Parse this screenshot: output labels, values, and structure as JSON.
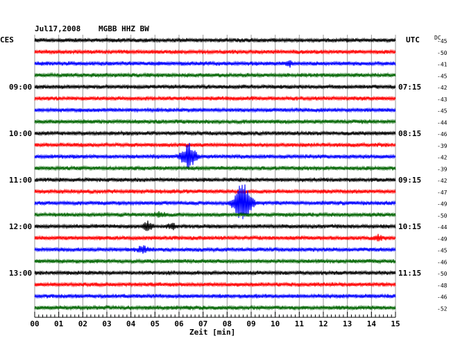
{
  "chart_data": {
    "type": "line",
    "title": "Jul17,2008",
    "station": "MGBB HHZ BW",
    "left_timezone": "CES",
    "right_timezone": "UTC",
    "dc_label": "DC",
    "xlabel": "Zeit [min]",
    "xlim": [
      0,
      15
    ],
    "x_ticks": [
      "00",
      "01",
      "02",
      "03",
      "04",
      "05",
      "06",
      "07",
      "08",
      "09",
      "10",
      "11",
      "12",
      "13",
      "14",
      "15"
    ],
    "grid": true,
    "trace_colors": [
      "#000000",
      "#ff0000",
      "#0000ff",
      "#006400"
    ],
    "traces_per_hour": 4,
    "minutes_per_trace": 15,
    "left_hour_labels": [
      "09:00",
      "10:00",
      "11:00",
      "12:00",
      "13:00"
    ],
    "right_hour_labels": [
      "07:15",
      "08:15",
      "09:15",
      "10:15",
      "11:15"
    ],
    "dc_offsets": [
      -45,
      -50,
      -41,
      -45,
      -42,
      -43,
      -45,
      -44,
      -46,
      -39,
      -42,
      -39,
      -42,
      -47,
      -49,
      -50,
      -44,
      -49,
      -45,
      -46,
      -50,
      -48,
      -46,
      -52
    ],
    "events": [
      {
        "trace": 10,
        "minute": 6.4,
        "amplitude": 20,
        "duration": 0.6
      },
      {
        "trace": 14,
        "minute": 8.65,
        "amplitude": 34,
        "duration": 0.7
      },
      {
        "trace": 16,
        "minute": 4.7,
        "amplitude": 7,
        "duration": 0.4
      },
      {
        "trace": 16,
        "minute": 5.7,
        "amplitude": 4,
        "duration": 0.4
      },
      {
        "trace": 18,
        "minute": 4.5,
        "amplitude": 4,
        "duration": 0.6
      },
      {
        "trace": 17,
        "minute": 14.3,
        "amplitude": 3,
        "duration": 0.4
      },
      {
        "trace": 15,
        "minute": 5.2,
        "amplitude": 3,
        "duration": 0.5
      },
      {
        "trace": 2,
        "minute": 10.6,
        "amplitude": 4,
        "duration": 0.3
      }
    ]
  }
}
